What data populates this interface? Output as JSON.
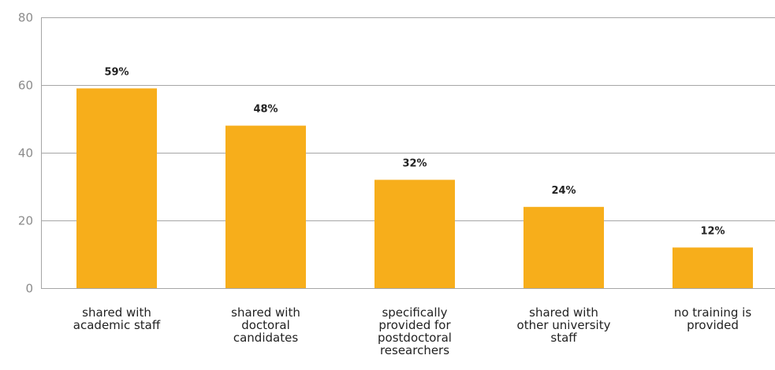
{
  "chart_data": {
    "type": "bar",
    "categories": [
      [
        "shared with",
        "academic staff"
      ],
      [
        "shared with",
        "doctoral",
        "candidates"
      ],
      [
        "specifically",
        "provided for",
        "postdoctoral",
        "researchers"
      ],
      [
        "shared with",
        "other university",
        "staff"
      ],
      [
        "no training is",
        "provided"
      ]
    ],
    "values": [
      59,
      48,
      32,
      24,
      12
    ],
    "data_labels": [
      "59%",
      "48%",
      "32%",
      "24%",
      "12%"
    ],
    "ylim": [
      0,
      80
    ],
    "yticks": [
      0,
      20,
      40,
      60,
      80
    ],
    "grid": true,
    "bar_color": "#f7ae1b"
  }
}
